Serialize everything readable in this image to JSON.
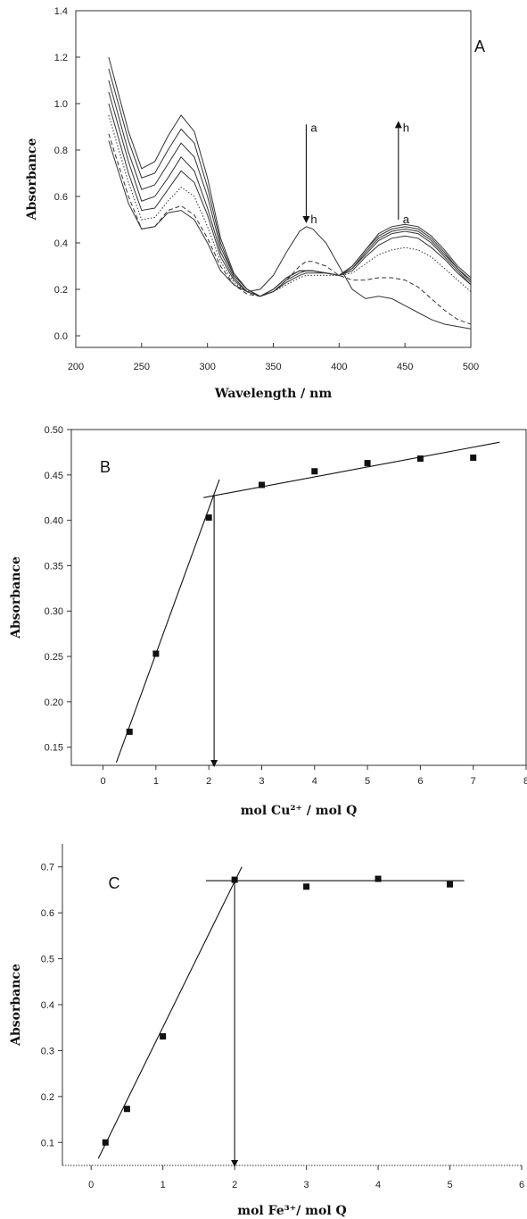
{
  "panels": [
    {
      "id": "A",
      "chart_data": {
        "type": "line",
        "panel_label": "A",
        "xlabel": "Wavelength / nm",
        "ylabel": "Absorbance",
        "xlim": [
          200,
          500
        ],
        "ylim": [
          -0.05,
          1.4
        ],
        "xticks": [
          200,
          250,
          300,
          350,
          400,
          450,
          500
        ],
        "yticks": [
          0.0,
          0.2,
          0.4,
          0.6,
          0.8,
          1.0,
          1.2,
          1.4
        ],
        "x": [
          225,
          240,
          250,
          260,
          270,
          280,
          290,
          300,
          310,
          320,
          330,
          340,
          350,
          360,
          370,
          375,
          380,
          390,
          400,
          410,
          420,
          430,
          440,
          450,
          460,
          470,
          480,
          490,
          500
        ],
        "series": [
          {
            "dash": "solid",
            "values": [
              1.2,
              0.88,
              0.72,
              0.75,
              0.86,
              0.95,
              0.88,
              0.68,
              0.42,
              0.27,
              0.2,
              0.17,
              0.2,
              0.25,
              0.28,
              0.28,
              0.28,
              0.27,
              0.26,
              0.3,
              0.37,
              0.44,
              0.47,
              0.48,
              0.47,
              0.43,
              0.37,
              0.3,
              0.25
            ]
          },
          {
            "dash": "solid",
            "values": [
              1.15,
              0.84,
              0.68,
              0.7,
              0.8,
              0.89,
              0.83,
              0.64,
              0.4,
              0.26,
              0.2,
              0.17,
              0.2,
              0.25,
              0.28,
              0.28,
              0.28,
              0.27,
              0.26,
              0.3,
              0.37,
              0.43,
              0.46,
              0.47,
              0.46,
              0.42,
              0.36,
              0.29,
              0.24
            ]
          },
          {
            "dash": "solid",
            "values": [
              1.1,
              0.79,
              0.63,
              0.65,
              0.74,
              0.83,
              0.77,
              0.6,
              0.38,
              0.26,
              0.2,
              0.17,
              0.2,
              0.25,
              0.28,
              0.28,
              0.28,
              0.27,
              0.26,
              0.29,
              0.36,
              0.42,
              0.45,
              0.46,
              0.45,
              0.41,
              0.35,
              0.29,
              0.23
            ]
          },
          {
            "dash": "solid",
            "values": [
              1.05,
              0.75,
              0.58,
              0.6,
              0.68,
              0.77,
              0.71,
              0.55,
              0.36,
              0.25,
              0.19,
              0.17,
              0.19,
              0.24,
              0.27,
              0.28,
              0.28,
              0.27,
              0.26,
              0.29,
              0.35,
              0.41,
              0.44,
              0.45,
              0.44,
              0.4,
              0.34,
              0.28,
              0.22
            ]
          },
          {
            "dash": "solid",
            "values": [
              1.0,
              0.7,
              0.54,
              0.55,
              0.63,
              0.71,
              0.66,
              0.52,
              0.34,
              0.24,
              0.19,
              0.17,
              0.19,
              0.23,
              0.26,
              0.27,
              0.27,
              0.27,
              0.26,
              0.28,
              0.34,
              0.39,
              0.42,
              0.43,
              0.42,
              0.38,
              0.33,
              0.27,
              0.22
            ]
          },
          {
            "dash": "dotted",
            "values": [
              0.95,
              0.66,
              0.5,
              0.51,
              0.58,
              0.64,
              0.6,
              0.47,
              0.32,
              0.23,
              0.19,
              0.17,
              0.19,
              0.22,
              0.25,
              0.26,
              0.26,
              0.26,
              0.26,
              0.27,
              0.31,
              0.35,
              0.37,
              0.38,
              0.37,
              0.34,
              0.29,
              0.24,
              0.19
            ]
          },
          {
            "dash": "dashed",
            "values": [
              0.87,
              0.6,
              0.46,
              0.47,
              0.54,
              0.56,
              0.52,
              0.42,
              0.3,
              0.22,
              0.18,
              0.17,
              0.19,
              0.24,
              0.3,
              0.32,
              0.32,
              0.3,
              0.26,
              0.24,
              0.24,
              0.25,
              0.25,
              0.24,
              0.21,
              0.16,
              0.11,
              0.07,
              0.05
            ]
          },
          {
            "dash": "solid",
            "values": [
              0.84,
              0.57,
              0.46,
              0.47,
              0.53,
              0.54,
              0.5,
              0.4,
              0.28,
              0.22,
              0.19,
              0.2,
              0.26,
              0.36,
              0.45,
              0.47,
              0.46,
              0.4,
              0.3,
              0.2,
              0.16,
              0.17,
              0.16,
              0.13,
              0.1,
              0.07,
              0.05,
              0.04,
              0.03
            ]
          }
        ],
        "annotations": [
          {
            "from_label": "a",
            "to_label": "h",
            "x": 375,
            "y_start": 0.91,
            "y_end": 0.5
          },
          {
            "from_label": "a",
            "to_label": "h",
            "x": 445,
            "y_start": 0.5,
            "y_end": 0.91
          }
        ]
      }
    },
    {
      "id": "B",
      "chart_data": {
        "type": "scatter",
        "panel_label": "B",
        "xlabel": "mol Cu²⁺ / mol Q",
        "ylabel": "Absorbance",
        "xlim": [
          -0.6,
          8
        ],
        "ylim": [
          0.13,
          0.5
        ],
        "xticks": [
          0,
          1,
          2,
          3,
          4,
          5,
          6,
          7,
          8
        ],
        "yticks": [
          0.15,
          0.2,
          0.25,
          0.3,
          0.35,
          0.4,
          0.45,
          0.5
        ],
        "ytick_labels": [
          "0.15",
          "0.20",
          "0.25",
          "0.30",
          "0.35",
          "0.40",
          "0.45",
          "0.50"
        ],
        "points": {
          "x": [
            0.5,
            1,
            2,
            3,
            4,
            5,
            6,
            7
          ],
          "y": [
            0.167,
            0.253,
            0.403,
            0.439,
            0.454,
            0.463,
            0.468,
            0.469
          ]
        },
        "fit_lines": [
          {
            "x": [
              0.25,
              2.2
            ],
            "y": [
              0.133,
              0.445
            ]
          },
          {
            "x": [
              1.9,
              7.5
            ],
            "y": [
              0.425,
              0.486
            ]
          }
        ],
        "drop_arrow_x": 2.1
      }
    },
    {
      "id": "C",
      "chart_data": {
        "type": "scatter",
        "panel_label": "C",
        "xlabel": "mol Fe³⁺/ mol Q",
        "ylabel": "Absorbance",
        "xlim": [
          -0.4,
          6
        ],
        "ylim": [
          0.05,
          0.75
        ],
        "xticks": [
          0,
          1,
          2,
          3,
          4,
          5,
          6
        ],
        "yticks": [
          0.1,
          0.2,
          0.3,
          0.4,
          0.5,
          0.6,
          0.7
        ],
        "ytick_labels": [
          "0.1",
          "0.2",
          "0.3",
          "0.4",
          "0.5",
          "0.6",
          "0.7"
        ],
        "points": {
          "x": [
            0.2,
            0.5,
            1,
            2,
            3,
            4,
            5
          ],
          "y": [
            0.1,
            0.173,
            0.331,
            0.672,
            0.657,
            0.674,
            0.662
          ]
        },
        "fit_lines": [
          {
            "x": [
              0.1,
              2.1
            ],
            "y": [
              0.065,
              0.7
            ]
          },
          {
            "x": [
              1.6,
              5.2
            ],
            "y": [
              0.67,
              0.67
            ]
          }
        ],
        "drop_arrow_x": 2.0
      }
    }
  ]
}
